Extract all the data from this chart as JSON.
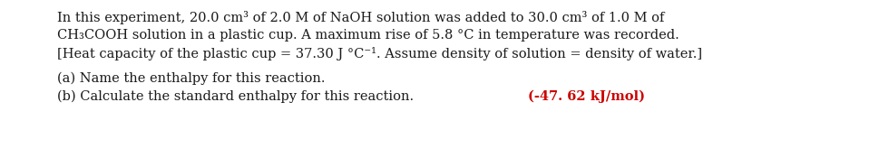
{
  "background_color": "#ffffff",
  "figsize": [
    9.7,
    1.75
  ],
  "dpi": 100,
  "line1": "In this experiment, 20.0 cm³ of 2.0 M of NaOH solution was added to 30.0 cm³ of 1.0 M of",
  "line2": "CH₃COOH solution in a plastic cup. A maximum rise of 5.8 °C in temperature was recorded.",
  "line3": "[Heat capacity of the plastic cup = 37.30 J °C⁻¹. Assume density of solution = density of water.]",
  "line4": "(a) Name the enthalpy for this reaction.",
  "line5_normal": "(b) Calculate the standard enthalpy for this reaction.  ",
  "line5_bold": "(-47. 62 kJ/mol)",
  "text_color": "#1a1a1a",
  "bold_color": "#cc0000",
  "font_size": 10.5
}
